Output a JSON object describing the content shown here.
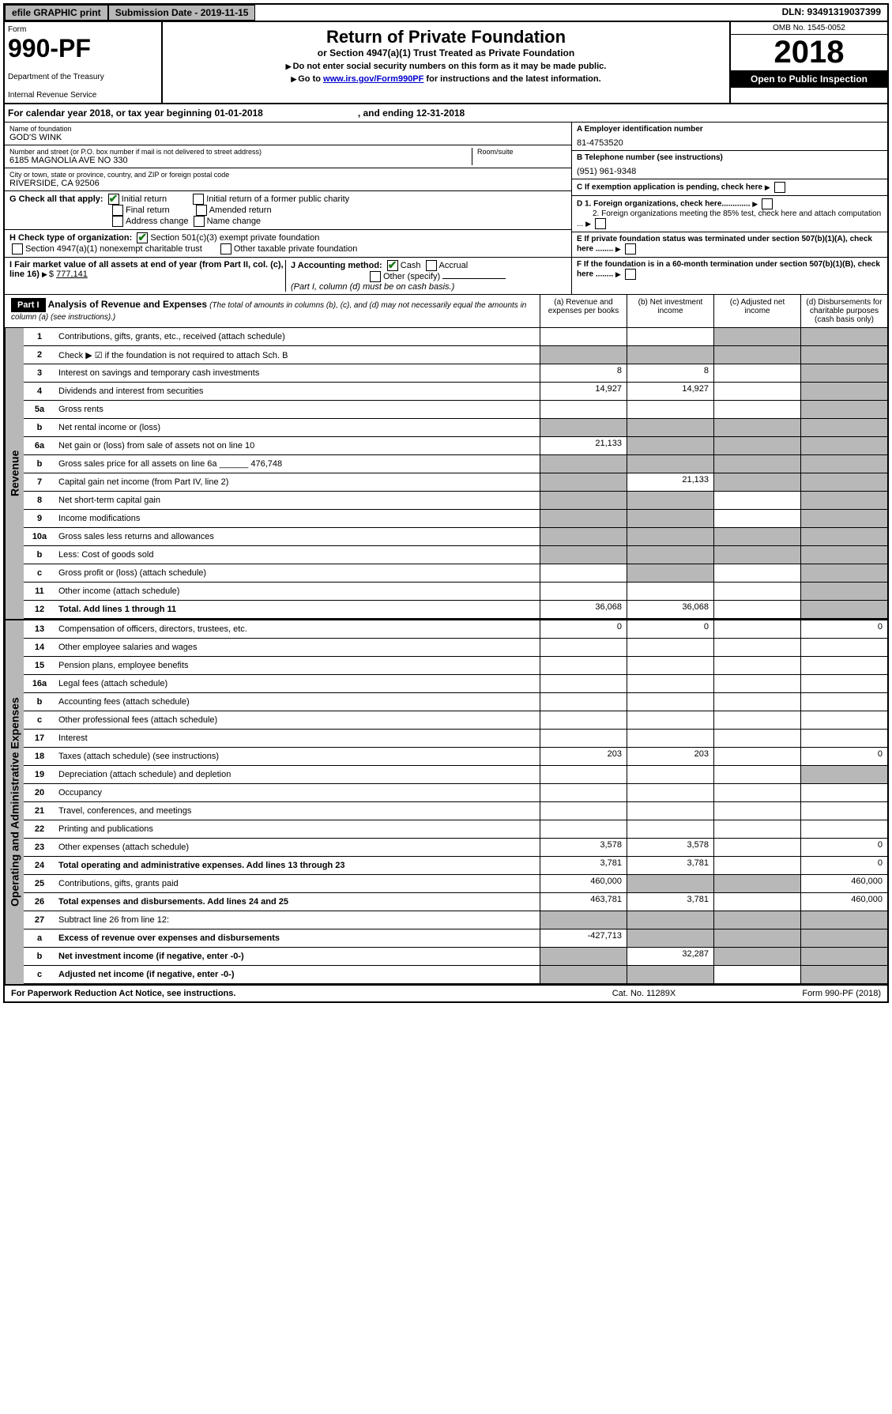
{
  "topbar": {
    "efile": "efile GRAPHIC print",
    "submission": "Submission Date - 2019-11-15",
    "dln": "DLN: 93491319037399"
  },
  "header": {
    "form_label": "Form",
    "form_number": "990-PF",
    "dept": "Department of the Treasury",
    "irs": "Internal Revenue Service",
    "title": "Return of Private Foundation",
    "subtitle": "or Section 4947(a)(1) Trust Treated as Private Foundation",
    "note1": "Do not enter social security numbers on this form as it may be made public.",
    "note2_prefix": "Go to ",
    "note2_link": "www.irs.gov/Form990PF",
    "note2_suffix": " for instructions and the latest information.",
    "omb": "OMB No. 1545-0052",
    "year": "2018",
    "open_public": "Open to Public Inspection"
  },
  "calyear": {
    "prefix": "For calendar year 2018, or tax year beginning ",
    "begin": "01-01-2018",
    "middle": ", and ending ",
    "end": "12-31-2018"
  },
  "info": {
    "name_label": "Name of foundation",
    "name": "GOD'S WINK",
    "address_label": "Number and street (or P.O. box number if mail is not delivered to street address)",
    "address": "6185 MAGNOLIA AVE NO 330",
    "room_label": "Room/suite",
    "city_label": "City or town, state or province, country, and ZIP or foreign postal code",
    "city": "RIVERSIDE, CA  92506",
    "ein_label": "A Employer identification number",
    "ein": "81-4753520",
    "phone_label": "B Telephone number (see instructions)",
    "phone": "(951) 961-9348",
    "c_label": "C  If exemption application is pending, check here",
    "d1_label": "D 1. Foreign organizations, check here.............",
    "d2_label": "2. Foreign organizations meeting the 85% test, check here and attach computation ...",
    "e_label": "E  If private foundation status was terminated under section 507(b)(1)(A), check here ........",
    "f_label": "F  If the foundation is in a 60-month termination under section 507(b)(1)(B), check here ........"
  },
  "check_g": {
    "label": "G Check all that apply:",
    "initial": "Initial return",
    "initial_former": "Initial return of a former public charity",
    "final": "Final return",
    "amended": "Amended return",
    "address": "Address change",
    "name": "Name change"
  },
  "check_h": {
    "label": "H Check type of organization:",
    "opt1": "Section 501(c)(3) exempt private foundation",
    "opt2": "Section 4947(a)(1) nonexempt charitable trust",
    "opt3": "Other taxable private foundation"
  },
  "fmv": {
    "label_i": "I Fair market value of all assets at end of year (from Part II, col. (c), line 16)",
    "value": "777,141",
    "label_j": "J Accounting method:",
    "cash": "Cash",
    "accrual": "Accrual",
    "other": "Other (specify)",
    "note": "(Part I, column (d) must be on cash basis.)"
  },
  "part1": {
    "header": "Part I",
    "title": "Analysis of Revenue and Expenses",
    "subtitle": "(The total of amounts in columns (b), (c), and (d) may not necessarily equal the amounts in column (a) (see instructions).)",
    "col_a": "(a) Revenue and expenses per books",
    "col_b": "(b) Net investment income",
    "col_c": "(c) Adjusted net income",
    "col_d": "(d) Disbursements for charitable purposes (cash basis only)"
  },
  "sections": {
    "revenue": "Revenue",
    "expenses": "Operating and Administrative Expenses"
  },
  "lines": [
    {
      "n": "1",
      "d": "Contributions, gifts, grants, etc., received (attach schedule)",
      "a": "",
      "b": "",
      "c": "",
      "dd": "",
      "cg": true,
      "dg": true
    },
    {
      "n": "2",
      "d": "Check ▶ ☑ if the foundation is not required to attach Sch. B",
      "a": "",
      "b": "",
      "c": "",
      "dd": "",
      "ag": true,
      "bg": true,
      "cg": true,
      "dg": true
    },
    {
      "n": "3",
      "d": "Interest on savings and temporary cash investments",
      "a": "8",
      "b": "8",
      "c": "",
      "dd": "",
      "dg": true
    },
    {
      "n": "4",
      "d": "Dividends and interest from securities",
      "a": "14,927",
      "b": "14,927",
      "c": "",
      "dd": "",
      "dg": true
    },
    {
      "n": "5a",
      "d": "Gross rents",
      "a": "",
      "b": "",
      "c": "",
      "dd": "",
      "dg": true
    },
    {
      "n": "b",
      "d": "Net rental income or (loss)",
      "a": "",
      "b": "",
      "c": "",
      "dd": "",
      "ag": true,
      "bg": true,
      "cg": true,
      "dg": true
    },
    {
      "n": "6a",
      "d": "Net gain or (loss) from sale of assets not on line 10",
      "a": "21,133",
      "b": "",
      "c": "",
      "dd": "",
      "bg": true,
      "cg": true,
      "dg": true
    },
    {
      "n": "b",
      "d": "Gross sales price for all assets on line 6a ______ 476,748",
      "a": "",
      "b": "",
      "c": "",
      "dd": "",
      "ag": true,
      "bg": true,
      "cg": true,
      "dg": true
    },
    {
      "n": "7",
      "d": "Capital gain net income (from Part IV, line 2)",
      "a": "",
      "b": "21,133",
      "c": "",
      "dd": "",
      "ag": true,
      "cg": true,
      "dg": true
    },
    {
      "n": "8",
      "d": "Net short-term capital gain",
      "a": "",
      "b": "",
      "c": "",
      "dd": "",
      "ag": true,
      "bg": true,
      "dg": true
    },
    {
      "n": "9",
      "d": "Income modifications",
      "a": "",
      "b": "",
      "c": "",
      "dd": "",
      "ag": true,
      "bg": true,
      "dg": true
    },
    {
      "n": "10a",
      "d": "Gross sales less returns and allowances",
      "a": "",
      "b": "",
      "c": "",
      "dd": "",
      "ag": true,
      "bg": true,
      "cg": true,
      "dg": true
    },
    {
      "n": "b",
      "d": "Less: Cost of goods sold",
      "a": "",
      "b": "",
      "c": "",
      "dd": "",
      "ag": true,
      "bg": true,
      "cg": true,
      "dg": true
    },
    {
      "n": "c",
      "d": "Gross profit or (loss) (attach schedule)",
      "a": "",
      "b": "",
      "c": "",
      "dd": "",
      "bg": true,
      "dg": true
    },
    {
      "n": "11",
      "d": "Other income (attach schedule)",
      "a": "",
      "b": "",
      "c": "",
      "dd": "",
      "dg": true
    },
    {
      "n": "12",
      "d": "Total. Add lines 1 through 11",
      "a": "36,068",
      "b": "36,068",
      "c": "",
      "dd": "",
      "dg": true,
      "bold": true
    }
  ],
  "exp_lines": [
    {
      "n": "13",
      "d": "Compensation of officers, directors, trustees, etc.",
      "a": "0",
      "b": "0",
      "c": "",
      "dd": "0"
    },
    {
      "n": "14",
      "d": "Other employee salaries and wages",
      "a": "",
      "b": "",
      "c": "",
      "dd": ""
    },
    {
      "n": "15",
      "d": "Pension plans, employee benefits",
      "a": "",
      "b": "",
      "c": "",
      "dd": ""
    },
    {
      "n": "16a",
      "d": "Legal fees (attach schedule)",
      "a": "",
      "b": "",
      "c": "",
      "dd": ""
    },
    {
      "n": "b",
      "d": "Accounting fees (attach schedule)",
      "a": "",
      "b": "",
      "c": "",
      "dd": ""
    },
    {
      "n": "c",
      "d": "Other professional fees (attach schedule)",
      "a": "",
      "b": "",
      "c": "",
      "dd": ""
    },
    {
      "n": "17",
      "d": "Interest",
      "a": "",
      "b": "",
      "c": "",
      "dd": ""
    },
    {
      "n": "18",
      "d": "Taxes (attach schedule) (see instructions)",
      "a": "203",
      "b": "203",
      "c": "",
      "dd": "0"
    },
    {
      "n": "19",
      "d": "Depreciation (attach schedule) and depletion",
      "a": "",
      "b": "",
      "c": "",
      "dd": "",
      "dg": true
    },
    {
      "n": "20",
      "d": "Occupancy",
      "a": "",
      "b": "",
      "c": "",
      "dd": ""
    },
    {
      "n": "21",
      "d": "Travel, conferences, and meetings",
      "a": "",
      "b": "",
      "c": "",
      "dd": ""
    },
    {
      "n": "22",
      "d": "Printing and publications",
      "a": "",
      "b": "",
      "c": "",
      "dd": ""
    },
    {
      "n": "23",
      "d": "Other expenses (attach schedule)",
      "a": "3,578",
      "b": "3,578",
      "c": "",
      "dd": "0"
    },
    {
      "n": "24",
      "d": "Total operating and administrative expenses. Add lines 13 through 23",
      "a": "3,781",
      "b": "3,781",
      "c": "",
      "dd": "0",
      "bold": true
    },
    {
      "n": "25",
      "d": "Contributions, gifts, grants paid",
      "a": "460,000",
      "b": "",
      "c": "",
      "dd": "460,000",
      "bg": true,
      "cg": true
    },
    {
      "n": "26",
      "d": "Total expenses and disbursements. Add lines 24 and 25",
      "a": "463,781",
      "b": "3,781",
      "c": "",
      "dd": "460,000",
      "bold": true
    },
    {
      "n": "27",
      "d": "Subtract line 26 from line 12:",
      "a": "",
      "b": "",
      "c": "",
      "dd": "",
      "ag": true,
      "bg": true,
      "cg": true,
      "dg": true
    },
    {
      "n": "a",
      "d": "Excess of revenue over expenses and disbursements",
      "a": "-427,713",
      "b": "",
      "c": "",
      "dd": "",
      "bg": true,
      "cg": true,
      "dg": true,
      "bold": true
    },
    {
      "n": "b",
      "d": "Net investment income (if negative, enter -0-)",
      "a": "",
      "b": "32,287",
      "c": "",
      "dd": "",
      "ag": true,
      "cg": true,
      "dg": true,
      "bold": true
    },
    {
      "n": "c",
      "d": "Adjusted net income (if negative, enter -0-)",
      "a": "",
      "b": "",
      "c": "",
      "dd": "",
      "ag": true,
      "bg": true,
      "dg": true,
      "bold": true
    }
  ],
  "footer": {
    "left": "For Paperwork Reduction Act Notice, see instructions.",
    "center": "Cat. No. 11289X",
    "right": "Form 990-PF (2018)"
  }
}
